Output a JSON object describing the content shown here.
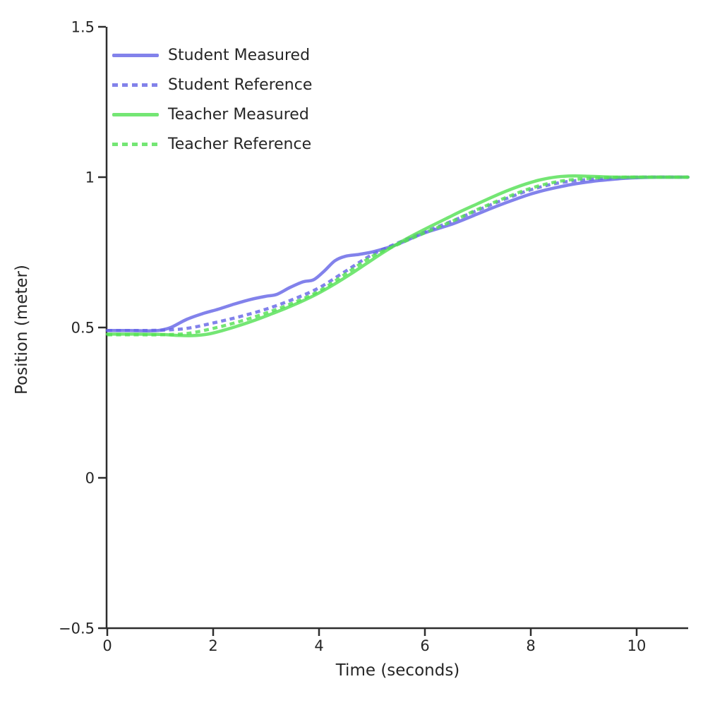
{
  "chart_data": {
    "type": "line",
    "title": "",
    "xlabel": "Time (seconds)",
    "ylabel": "Position (meter)",
    "xlim": [
      0,
      11
    ],
    "ylim": [
      -0.5,
      1.5
    ],
    "xticks": [
      0,
      2,
      4,
      6,
      8,
      10
    ],
    "xtick_labels": [
      "0",
      "2",
      "4",
      "6",
      "8",
      "10"
    ],
    "yticks": [
      -0.5,
      0,
      0.5,
      1,
      1.5
    ],
    "ytick_labels": [
      "−0.5",
      "0",
      "0.5",
      "1",
      "1.5"
    ],
    "grid": false,
    "legend_position": "upper-left",
    "axis_color": "#2d2d2d",
    "text_color": "#262626",
    "line_opacity": 0.82,
    "series": [
      {
        "name": "Student Measured",
        "color": "#6666e6",
        "line_style": "solid",
        "points": [
          [
            0,
            0.49
          ],
          [
            0.4,
            0.49
          ],
          [
            0.8,
            0.489
          ],
          [
            1.0,
            0.491
          ],
          [
            1.2,
            0.5
          ],
          [
            1.5,
            0.527
          ],
          [
            1.8,
            0.546
          ],
          [
            2.1,
            0.561
          ],
          [
            2.4,
            0.578
          ],
          [
            2.7,
            0.593
          ],
          [
            3.0,
            0.604
          ],
          [
            3.2,
            0.61
          ],
          [
            3.45,
            0.633
          ],
          [
            3.7,
            0.652
          ],
          [
            3.9,
            0.659
          ],
          [
            4.1,
            0.688
          ],
          [
            4.3,
            0.722
          ],
          [
            4.5,
            0.737
          ],
          [
            4.75,
            0.743
          ],
          [
            5.0,
            0.751
          ],
          [
            5.25,
            0.763
          ],
          [
            5.5,
            0.778
          ],
          [
            5.75,
            0.797
          ],
          [
            6.0,
            0.815
          ],
          [
            6.25,
            0.829
          ],
          [
            6.5,
            0.843
          ],
          [
            6.75,
            0.86
          ],
          [
            7.0,
            0.878
          ],
          [
            7.25,
            0.896
          ],
          [
            7.5,
            0.913
          ],
          [
            7.75,
            0.929
          ],
          [
            8.0,
            0.944
          ],
          [
            8.25,
            0.956
          ],
          [
            8.5,
            0.966
          ],
          [
            8.75,
            0.975
          ],
          [
            9.0,
            0.982
          ],
          [
            9.25,
            0.988
          ],
          [
            9.5,
            0.992
          ],
          [
            9.75,
            0.996
          ],
          [
            10.0,
            0.998
          ],
          [
            10.4,
            1.0
          ],
          [
            10.97,
            1.0
          ]
        ]
      },
      {
        "name": "Student Reference",
        "color": "#6666e6",
        "line_style": "dashed",
        "points": [
          [
            0,
            0.49
          ],
          [
            0.5,
            0.49
          ],
          [
            1.0,
            0.491
          ],
          [
            1.5,
            0.497
          ],
          [
            2.0,
            0.515
          ],
          [
            2.5,
            0.536
          ],
          [
            3.0,
            0.561
          ],
          [
            3.5,
            0.593
          ],
          [
            4.0,
            0.632
          ],
          [
            4.5,
            0.687
          ],
          [
            5.0,
            0.742
          ],
          [
            5.5,
            0.782
          ],
          [
            6.0,
            0.818
          ],
          [
            6.5,
            0.853
          ],
          [
            7.0,
            0.89
          ],
          [
            7.5,
            0.926
          ],
          [
            8.0,
            0.958
          ],
          [
            8.5,
            0.98
          ],
          [
            9.0,
            0.991
          ],
          [
            9.5,
            0.997
          ],
          [
            10.0,
            1.0
          ],
          [
            10.97,
            1.0
          ]
        ]
      },
      {
        "name": "Teacher Measured",
        "color": "#55e055",
        "line_style": "solid",
        "points": [
          [
            0,
            0.478
          ],
          [
            0.5,
            0.478
          ],
          [
            1.0,
            0.477
          ],
          [
            1.3,
            0.474
          ],
          [
            1.6,
            0.473
          ],
          [
            1.9,
            0.478
          ],
          [
            2.2,
            0.491
          ],
          [
            2.5,
            0.507
          ],
          [
            2.8,
            0.525
          ],
          [
            3.1,
            0.545
          ],
          [
            3.4,
            0.566
          ],
          [
            3.7,
            0.589
          ],
          [
            4.0,
            0.615
          ],
          [
            4.3,
            0.645
          ],
          [
            4.6,
            0.678
          ],
          [
            4.9,
            0.713
          ],
          [
            5.2,
            0.748
          ],
          [
            5.5,
            0.78
          ],
          [
            5.8,
            0.809
          ],
          [
            6.1,
            0.836
          ],
          [
            6.4,
            0.862
          ],
          [
            6.7,
            0.888
          ],
          [
            7.0,
            0.912
          ],
          [
            7.3,
            0.936
          ],
          [
            7.6,
            0.958
          ],
          [
            7.9,
            0.977
          ],
          [
            8.2,
            0.992
          ],
          [
            8.5,
            1.001
          ],
          [
            8.8,
            1.004
          ],
          [
            9.1,
            1.003
          ],
          [
            9.4,
            1.001
          ],
          [
            9.7,
            1.0
          ],
          [
            10.0,
            1.0
          ],
          [
            10.97,
            1.0
          ]
        ]
      },
      {
        "name": "Teacher Reference",
        "color": "#55e055",
        "line_style": "dashed",
        "points": [
          [
            0,
            0.476
          ],
          [
            0.5,
            0.476
          ],
          [
            1.0,
            0.476
          ],
          [
            1.5,
            0.48
          ],
          [
            2.0,
            0.497
          ],
          [
            2.5,
            0.52
          ],
          [
            3.0,
            0.548
          ],
          [
            3.5,
            0.581
          ],
          [
            4.0,
            0.621
          ],
          [
            4.5,
            0.678
          ],
          [
            5.0,
            0.736
          ],
          [
            5.5,
            0.777
          ],
          [
            6.0,
            0.815
          ],
          [
            6.5,
            0.852
          ],
          [
            7.0,
            0.893
          ],
          [
            7.5,
            0.93
          ],
          [
            8.0,
            0.963
          ],
          [
            8.5,
            0.985
          ],
          [
            9.0,
            0.995
          ],
          [
            9.5,
            0.999
          ],
          [
            10.0,
            1.0
          ],
          [
            10.97,
            1.0
          ]
        ]
      }
    ]
  }
}
